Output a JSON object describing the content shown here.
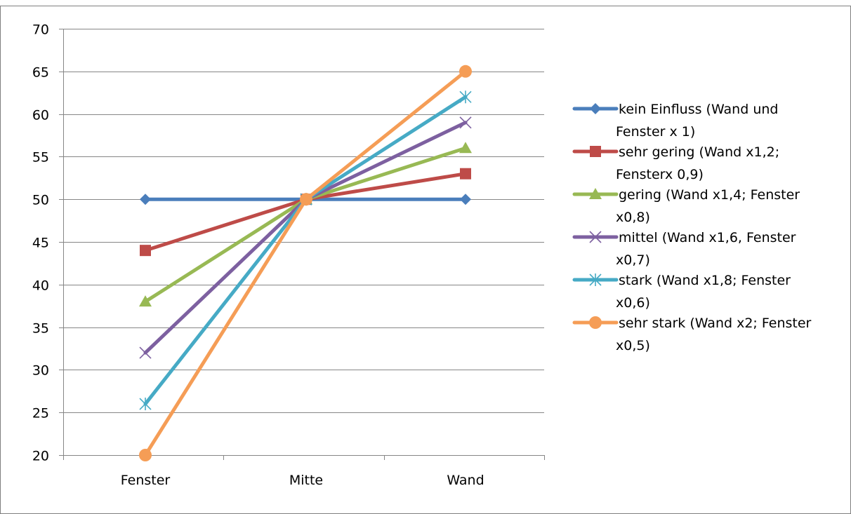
{
  "chart_data": {
    "type": "line",
    "categories": [
      "Fenster",
      "Mitte",
      "Wand"
    ],
    "ylim": [
      20,
      70
    ],
    "yticks": [
      20,
      25,
      30,
      35,
      40,
      45,
      50,
      55,
      60,
      65,
      70
    ],
    "grid": true,
    "legend_position": "right",
    "series": [
      {
        "name": "kein Einfluss (Wand und Fenster x 1)",
        "legend_lines": [
          "kein Einfluss (Wand und",
          "Fenster x 1)"
        ],
        "values": [
          50,
          50,
          50
        ],
        "color": "#4a7ebb",
        "marker": "diamond"
      },
      {
        "name": "sehr gering (Wand x1,2; Fensterx 0,9)",
        "legend_lines": [
          "sehr gering (Wand x1,2;",
          "Fensterx 0,9)"
        ],
        "values": [
          44,
          50,
          53
        ],
        "color": "#be4b48",
        "marker": "square"
      },
      {
        "name": "gering (Wand x1,4; Fenster x0,8)",
        "legend_lines": [
          "gering (Wand x1,4; Fenster",
          "x0,8)"
        ],
        "values": [
          38,
          50,
          56
        ],
        "color": "#98b954",
        "marker": "triangle"
      },
      {
        "name": "mittel (Wand x1,6, Fenster x0,7)",
        "legend_lines": [
          "mittel (Wand x1,6, Fenster",
          "x0,7)"
        ],
        "values": [
          32,
          50,
          59
        ],
        "color": "#7d60a0",
        "marker": "x"
      },
      {
        "name": "stark (Wand x1,8; Fenster x0,6)",
        "legend_lines": [
          "stark (Wand x1,8; Fenster",
          "x0,6)"
        ],
        "values": [
          26,
          50,
          62
        ],
        "color": "#46aac5",
        "marker": "star"
      },
      {
        "name": "sehr stark (Wand x2; Fenster x0,5)",
        "legend_lines": [
          "sehr stark (Wand x2; Fenster",
          "x0,5)"
        ],
        "values": [
          20,
          50,
          65
        ],
        "color": "#f59d56",
        "marker": "circle"
      }
    ]
  }
}
